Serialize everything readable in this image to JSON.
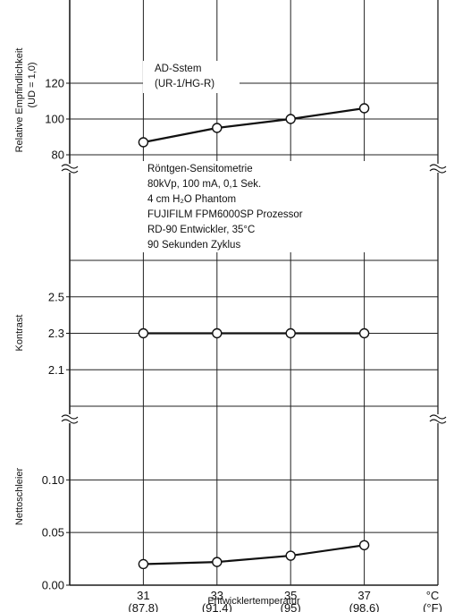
{
  "chart_data": {
    "type": "line",
    "x": [
      31,
      33,
      35,
      37
    ],
    "x_tick_labels": [
      "31",
      "33",
      "35",
      "37"
    ],
    "x_tick_sublabels": [
      "(87.8)",
      "(91.4)",
      "(95)",
      "(98.6)"
    ],
    "unit_c": "°C",
    "unit_f": "(°F)",
    "xlabel": "Entwicklertemperatur",
    "xlim": [
      29,
      39
    ],
    "panels": [
      {
        "id": "sensitivity",
        "ylabel_line1": "Relative Empfindlichkeit",
        "ylabel_line2": "(UD = 1,0)",
        "ylim": [
          70,
          140
        ],
        "yticks": [
          80,
          100,
          120
        ],
        "ytick_labels": [
          "80",
          "100",
          "120"
        ],
        "series": [
          {
            "values": [
              87,
              95,
              100,
              106
            ]
          }
        ],
        "annotation_lines": [
          "AD-Sstem",
          "(UR-1/HG-R)"
        ]
      },
      {
        "id": "contrast",
        "ylabel_line1": "Kontrast",
        "ylim": [
          1.9,
          2.7
        ],
        "yticks": [
          2.1,
          2.3,
          2.5
        ],
        "ytick_labels": [
          "2.1",
          "2.3",
          "2.5"
        ],
        "series": [
          {
            "values": [
              2.3,
              2.3,
              2.3,
              2.3
            ]
          }
        ]
      },
      {
        "id": "fog",
        "ylabel_line1": "Nettoschleier",
        "ylim": [
          0.0,
          0.17
        ],
        "yticks": [
          0.0,
          0.05,
          0.1
        ],
        "ytick_labels": [
          "0.00",
          "0.05",
          "0.10"
        ],
        "series": [
          {
            "values": [
              0.02,
              0.022,
              0.028,
              0.038
            ]
          }
        ]
      }
    ],
    "conditions": [
      "Röntgen-Sensitometrie",
      "80kVp, 100 mA, 0,1 Sek.",
      "4 cm H₂O Phantom",
      "FUJIFILM FPM6000SP  Prozessor",
      "RD-90 Entwickler, 35°C",
      "90 Sekunden Zyklus"
    ],
    "grid": true,
    "colors": {
      "line": "#111111",
      "grid": "#222222",
      "marker_fill": "#ffffff"
    }
  }
}
